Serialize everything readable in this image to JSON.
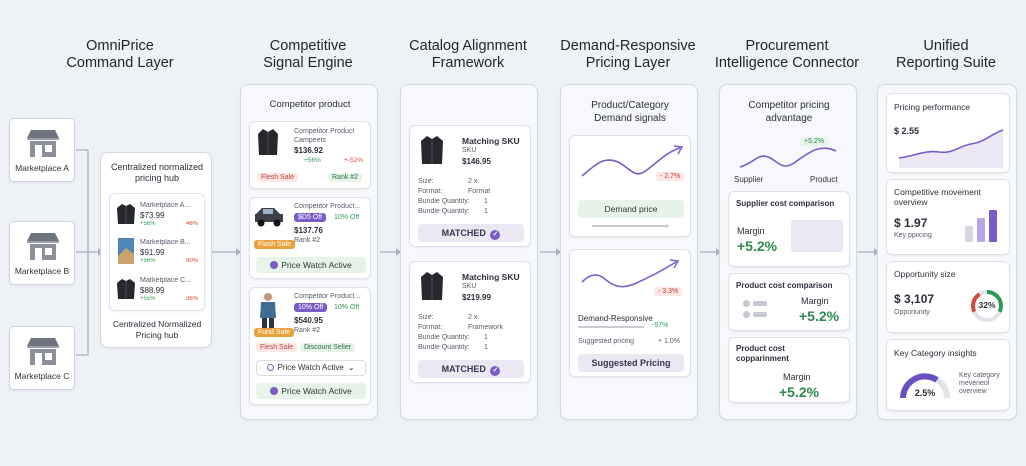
{
  "headers": [
    "OmniPrice\nCommand Layer",
    "Competitive\nSignal Engine",
    "Catalog Alignment\nFramework",
    "Demand-Responsive\nPricing Layer",
    "Procurement\nIntelligence Connector",
    "Unified\nReporting Suite"
  ],
  "marketplaces": [
    "Marketplace A",
    "Marketplace B",
    "Marketplace C"
  ],
  "hub": {
    "title": "Centralized normalized pricing hub",
    "footer": "Centralized Normalized Pricing hub",
    "items": [
      {
        "name": "Marketplace A...",
        "price": "$73.99",
        "up": "+56%",
        "down": "46%"
      },
      {
        "name": "Marketplace B...",
        "price": "$91.99",
        "up": "+56%",
        "down": "90%"
      },
      {
        "name": "Marketplace C...",
        "price": "$88.99",
        "up": "+55%",
        "down": "36%"
      }
    ]
  },
  "signal": {
    "title": "Competitor product",
    "c1": {
      "name": "Competitor Product Campeets",
      "price": "$136.92",
      "up": "+56%",
      "down": "+-52%",
      "tag1": "Flesh Sale",
      "tag2": "Rank #2"
    },
    "c2": {
      "name": "Competitor Product...",
      "badge": "$D5 Off",
      "off": "10% Off",
      "price": "$137.76",
      "rank": "Rank #2",
      "tag": "Flash Sale",
      "watch": "Price Watch Active"
    },
    "c3": {
      "name": "Competitor Product...",
      "badge": "10% Off",
      "off": "10% Off",
      "price": "$540.95",
      "rank": "Rank #2",
      "tag0": "Fund Sale",
      "tag1": "Flesh Sale",
      "tag2": "Discount Seller",
      "watch1": "Price Watch Active",
      "watch2": "Price Watch Active"
    }
  },
  "catalog": {
    "s1": {
      "title": "Matching SKU",
      "sub": "SKU",
      "price": "$146.95",
      "rows": [
        [
          "Size:",
          "2 x"
        ],
        [
          "Format:",
          "Format"
        ],
        [
          "Bundle Quantity:",
          "1"
        ],
        [
          "Bundle Quantity:",
          "1"
        ]
      ],
      "status": "MATCHED"
    },
    "s2": {
      "title": "Matching SKU",
      "sub": "SKU",
      "price": "$219.99",
      "rows": [
        [
          "Size:",
          "2 x"
        ],
        [
          "Format:",
          "Framework"
        ],
        [
          "Bundle Quantity:",
          "1"
        ],
        [
          "Bundle Quantity:",
          "1"
        ]
      ],
      "status": "MATCHED"
    }
  },
  "demand": {
    "title": "Product/Category Demand signals",
    "d1": {
      "delta": "- 2.7%",
      "label": "Demand price"
    },
    "d2": {
      "delta": "- 3.3%",
      "label": "Demand-Responsive",
      "label_delta": "-57%",
      "sugg": "Suggested pricing",
      "sugg_delta": "+ 1.0%",
      "button": "Suggested Pricing"
    }
  },
  "procurement": {
    "title": "Competitor pricing advantage",
    "chart_delta": "+5.2%",
    "supplier": "Supplier",
    "product": "Product",
    "p1": {
      "title": "Supplier cost comparison",
      "label": "Margin",
      "value": "+5.2%"
    },
    "p2": {
      "title": "Product cost comparison",
      "label": "Margin",
      "value": "+5.2%"
    },
    "p3": {
      "title": "Product cost copparinment",
      "label": "Margin",
      "value": "+5.2%"
    }
  },
  "reporting": {
    "r1": {
      "title": "Pricing performance",
      "value": "$ 2.55"
    },
    "r2": {
      "title": "Competitive movement overview",
      "value": "$ 1.97",
      "sub": "Key ppiicing"
    },
    "r3": {
      "title": "Opportunity size",
      "value": "$ 3,107",
      "sub": "Opporlunity",
      "ring": "32%"
    },
    "r4": {
      "title": "Key Category insights",
      "gauge": "2.5%",
      "sub": "Key category meveneol overview"
    }
  },
  "colors": {
    "accent": "#7a5cc8",
    "green": "#2e8a4a",
    "red": "#d4473d",
    "chip_green": "#e5f3e8",
    "chip_red": "#fde6e4"
  }
}
